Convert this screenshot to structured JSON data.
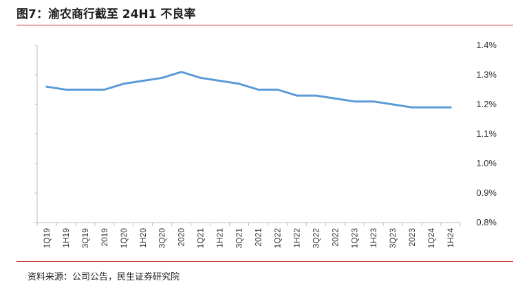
{
  "title": "图7：渝农商行截至 24H1 不良率",
  "source": "资料来源：公司公告，民生证券研究院",
  "colors": {
    "line": "#5b9bd5",
    "accent": "#c62828",
    "axis": "#bfbfbf"
  },
  "chart_data": {
    "type": "line",
    "title": "图7：渝农商行截至 24H1 不良率",
    "xlabel": "",
    "ylabel": "",
    "categories": [
      "1Q19",
      "1H19",
      "3Q19",
      "2019",
      "1Q20",
      "1H20",
      "3Q20",
      "2020",
      "1Q21",
      "1H21",
      "3Q21",
      "2021",
      "1Q22",
      "1H22",
      "3Q22",
      "2022",
      "1Q23",
      "1H23",
      "3Q23",
      "2023",
      "1Q24",
      "1H24"
    ],
    "series": [
      {
        "values": [
          1.26,
          1.25,
          1.25,
          1.25,
          1.27,
          1.28,
          1.29,
          1.31,
          1.29,
          1.28,
          1.27,
          1.25,
          1.25,
          1.23,
          1.23,
          1.22,
          1.21,
          1.21,
          1.2,
          1.19,
          1.19,
          1.19
        ]
      }
    ],
    "ylim": [
      0.8,
      1.4
    ],
    "yticks": [
      "1.4%",
      "1.3%",
      "1.2%",
      "1.1%",
      "1.0%",
      "0.9%",
      "0.8%"
    ],
    "y_axis_side": "right",
    "grid": false,
    "legend": "none"
  }
}
